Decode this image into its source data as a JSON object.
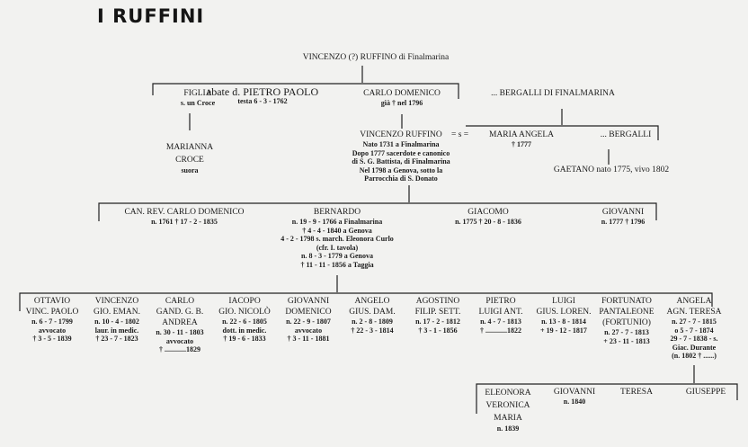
{
  "title": "I RUFFINI",
  "people": [
    {
      "id": "root",
      "lines": [
        "VINCENZO (?) RUFFINO di Finalmarina"
      ]
    },
    {
      "id": "figlia",
      "lines": [
        "FIGLIA",
        "s. un Croce"
      ]
    },
    {
      "id": "pietro_paolo",
      "lines": [
        "abate d. PIETRO PAOLO",
        "testa 6 - 3 - 1762"
      ]
    },
    {
      "id": "carlo_domenico",
      "lines": [
        "CARLO DOMENICO",
        "già † nel 1796"
      ]
    },
    {
      "id": "marianna",
      "lines": [
        "MARIANNA",
        "CROCE",
        "suora"
      ]
    },
    {
      "id": "vincenzo_ruffino",
      "lines": [
        "VINCENZO RUFFINO",
        "Nato 1731 a Finalmarina",
        "Dopo 1777 sacerdote e canonico",
        "di S. G. Battista, di Finalmarina",
        "Nel 1798 a Genova, sotto la",
        "Parrocchia di S. Donato"
      ]
    },
    {
      "id": "marriage",
      "lines": [
        "= s ="
      ]
    },
    {
      "id": "bergalli_root",
      "lines": [
        "... BERGALLI DI FINALMARINA"
      ]
    },
    {
      "id": "maria_angela",
      "lines": [
        "MARIA ANGELA",
        "† 1777"
      ]
    },
    {
      "id": "bergalli",
      "lines": [
        "... BERGALLI"
      ]
    },
    {
      "id": "gaetano",
      "lines": [
        "GAETANO  nato 1775, vivo 1802"
      ]
    },
    {
      "id": "can_carlo",
      "lines": [
        "CAN. REV. CARLO DOMENICO",
        "n. 1761 † 17 - 2 - 1835"
      ]
    },
    {
      "id": "bernardo",
      "lines": [
        "BERNARDO",
        "n. 19 - 9 - 1766 a Finalmarina",
        "† 4 - 4 - 1840 a Genova",
        "4 - 2 - 1798 s. march. Eleonora Curlo",
        "(cfr. I. tavola)",
        "n. 8 - 3 - 1779 a Genova",
        "† 11 - 11 - 1856 a Taggia"
      ]
    },
    {
      "id": "giacomo",
      "lines": [
        "GIACOMO",
        "n. 1775 † 20 - 8 - 1836"
      ]
    },
    {
      "id": "giovanni1",
      "lines": [
        "GIOVANNI",
        "n. 1777 † 1796"
      ]
    },
    {
      "id": "ottavio",
      "lines": [
        "OTTAVIO",
        "VINC. PAOLO",
        "n. 6 - 7 - 1799",
        "avvocato",
        "† 3 - 5 - 1839"
      ]
    },
    {
      "id": "vincenzo2",
      "lines": [
        "VINCENZO",
        "GIO. EMAN.",
        "n. 10 - 4 - 1802",
        "laur. in medic.",
        "† 23 - 7 - 1823"
      ]
    },
    {
      "id": "carlo2",
      "lines": [
        "CARLO",
        "GAND. G. B.",
        "ANDREA",
        "n. 30 - 11 - 1803",
        "avvocato",
        "† ............1829"
      ]
    },
    {
      "id": "iacopo",
      "lines": [
        "IACOPO",
        "GIO. NICOLÒ",
        "n. 22 - 6 - 1805",
        "dott. in medic.",
        "† 19 - 6 - 1833"
      ]
    },
    {
      "id": "giovanni2",
      "lines": [
        "GIOVANNI",
        "DOMENICO",
        "n. 22 - 9 - 1807",
        "avvocato",
        "† 3 - 11 - 1881"
      ]
    },
    {
      "id": "angelo",
      "lines": [
        "ANGELO",
        "GIUS. DAM.",
        "n. 2 - 8 - 1809",
        "† 22 - 3 - 1814"
      ]
    },
    {
      "id": "agostino",
      "lines": [
        "AGOSTINO",
        "FILIP. SETT.",
        "n. 17 - 2 - 1812",
        "† 3 - 1 - 1856"
      ]
    },
    {
      "id": "pietro",
      "lines": [
        "PIETRO",
        "LUIGI ANT.",
        "n. 4 - 7 - 1813",
        "† ............1822"
      ]
    },
    {
      "id": "luigi",
      "lines": [
        "LUIGI",
        "GIUS. LOREN.",
        "n. 13 - 8 - 1814",
        "+ 19 - 12 - 1817"
      ]
    },
    {
      "id": "fortunato",
      "lines": [
        "FORTUNATO",
        "PANTALEONE",
        "(FORTUNIO)",
        "n. 27 - 7 - 1813",
        "+ 23 - 11 - 1813"
      ]
    },
    {
      "id": "angela",
      "lines": [
        "ANGELA",
        "AGN. TERESA",
        "n. 27 - 7 - 1815",
        "o 5 - 7 - 1874",
        "29 - 7 - 1838 - s.",
        "Giac. Durante",
        "(n. 1802 † ......)"
      ]
    },
    {
      "id": "eleonora",
      "lines": [
        "ELEONORA",
        "VERONICA",
        "MARIA",
        "n. 1839"
      ]
    },
    {
      "id": "giovanni3",
      "lines": [
        "GIOVANNI",
        "n. 1840"
      ]
    },
    {
      "id": "teresa",
      "lines": [
        "TERESA"
      ]
    },
    {
      "id": "giuseppe",
      "lines": [
        "GIUSEPPE"
      ]
    }
  ],
  "colors": {
    "paper": "#f2f2f0",
    "ink": "#1a1a1a"
  }
}
